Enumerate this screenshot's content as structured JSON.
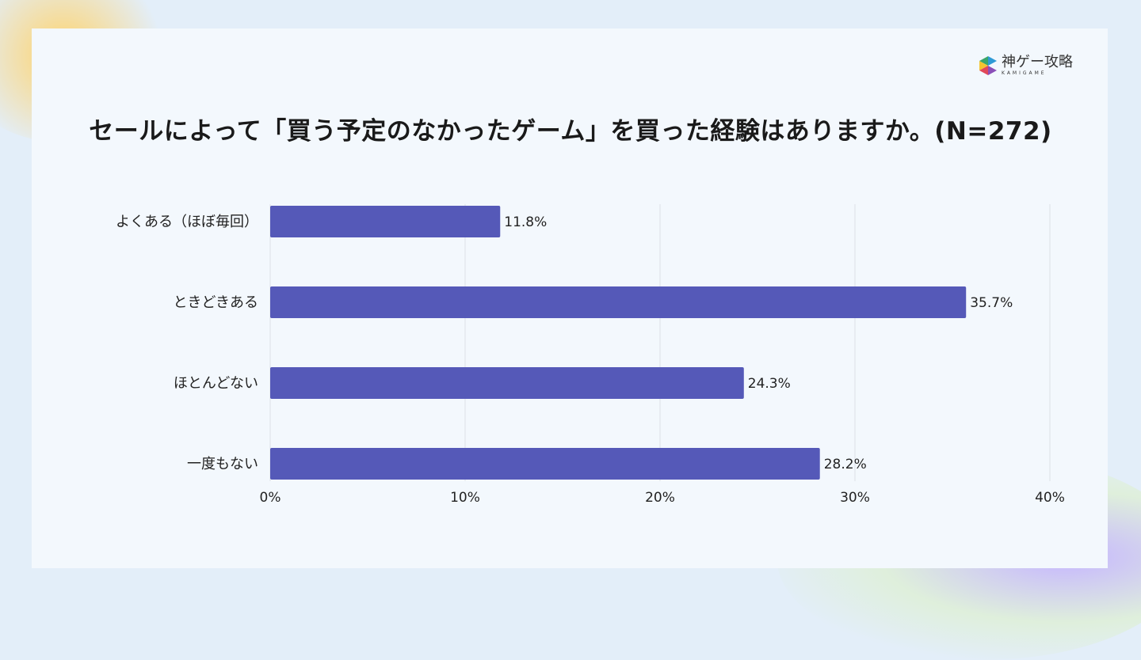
{
  "logo": {
    "main": "神ゲー攻略",
    "sub": "KAMIGAME"
  },
  "colors": {
    "bar": "#5559b8",
    "grid": "#dcdfe6",
    "text": "#222222"
  },
  "chart_data": {
    "type": "bar",
    "orientation": "horizontal",
    "title": "セールによって「買う予定のなかったゲーム」を買った経験はありますか。(N=272)",
    "categories": [
      "よくある（ほぼ毎回）",
      "ときどきある",
      "ほとんどない",
      "一度もない"
    ],
    "values": [
      11.8,
      35.7,
      24.3,
      28.2
    ],
    "value_labels": [
      "11.8%",
      "35.7%",
      "24.3%",
      "28.2%"
    ],
    "xlim": [
      0,
      40
    ],
    "xticks": [
      0,
      10,
      20,
      30,
      40
    ],
    "xtick_labels": [
      "0%",
      "10%",
      "20%",
      "30%",
      "40%"
    ],
    "xlabel": "",
    "ylabel": "",
    "grid": true,
    "legend": "none"
  }
}
